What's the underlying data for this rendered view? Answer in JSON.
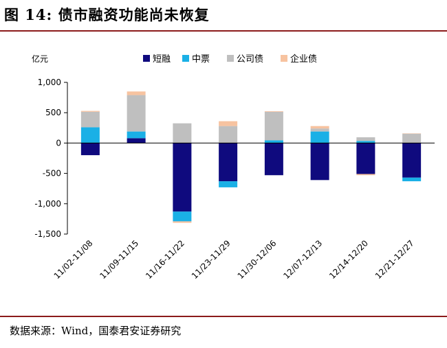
{
  "figure": {
    "title": "图 14:  债市融资功能尚未恢复",
    "source": "数据来源：Wind，国泰君安证券研究"
  },
  "chart_data": {
    "type": "bar",
    "stacked": true,
    "ylabel": "亿元",
    "ylim": [
      -1500,
      1000
    ],
    "yticks": [
      1000,
      500,
      0,
      -500,
      -1000,
      -1500
    ],
    "ytick_labels": [
      "1,000",
      "500",
      "0",
      "-500",
      "-1,000",
      "-1,500"
    ],
    "categories": [
      "11/02-11/08",
      "11/09-11/15",
      "11/16-11/22",
      "11/23-11/29",
      "11/30-12/06",
      "12/07-12/13",
      "12/14-12/20",
      "12/21-12/27"
    ],
    "legend_position": "top",
    "grid": false,
    "series": [
      {
        "name": "短融",
        "color": "#0f0a7e",
        "values": [
          -200,
          80,
          -1130,
          -630,
          -530,
          -610,
          -510,
          -570
        ]
      },
      {
        "name": "中票",
        "color": "#1ab0e6",
        "values": [
          260,
          110,
          -160,
          -100,
          45,
          190,
          35,
          -60
        ]
      },
      {
        "name": "公司债",
        "color": "#bfbfbf",
        "values": [
          255,
          600,
          325,
          280,
          470,
          50,
          60,
          155
        ]
      },
      {
        "name": "企业债",
        "color": "#f7c3a0",
        "values": [
          15,
          60,
          -25,
          80,
          10,
          40,
          -20,
          5
        ]
      }
    ]
  }
}
